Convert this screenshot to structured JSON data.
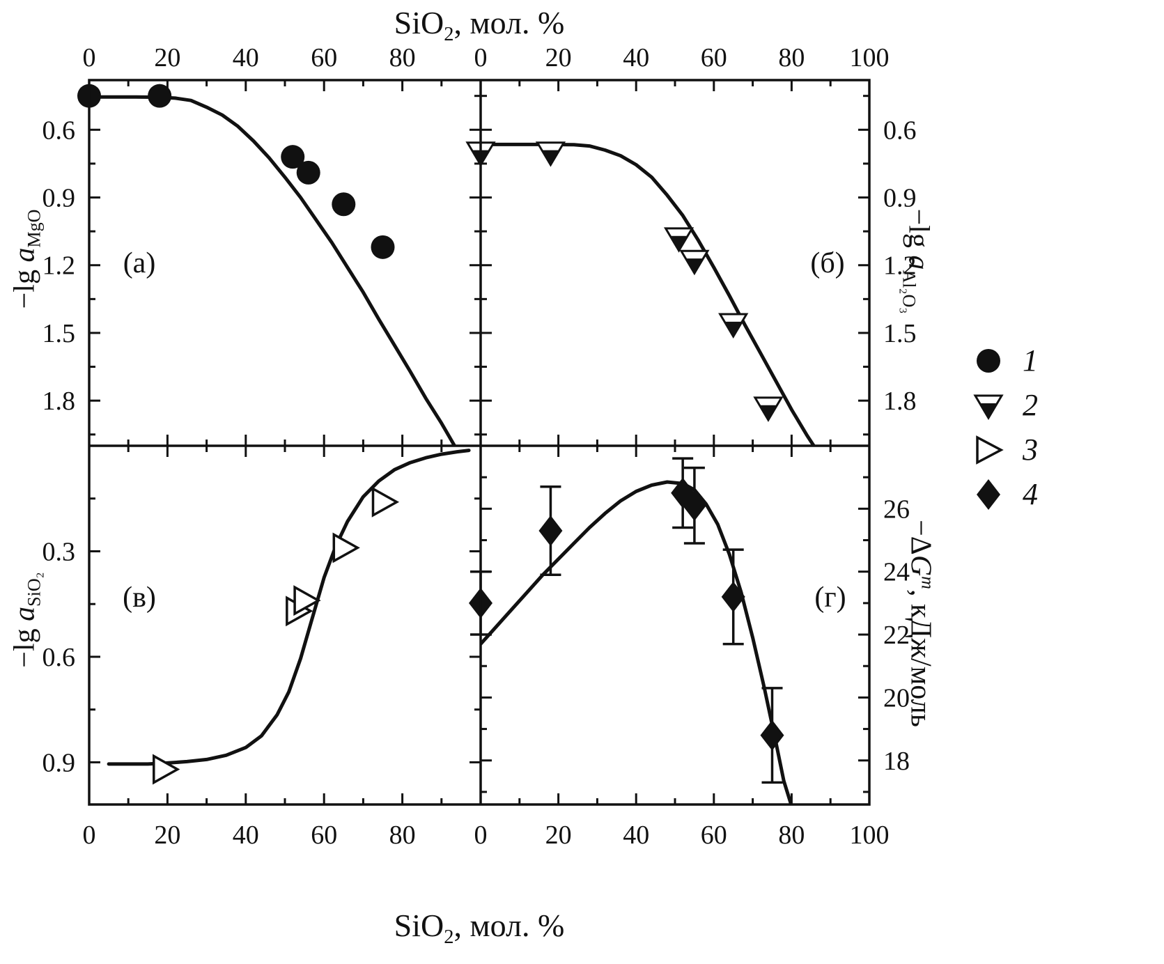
{
  "colors": {
    "ink": "#111111",
    "background": "#ffffff"
  },
  "titles": {
    "top": {
      "pre": "SiO",
      "sub": "2",
      "post": ", мол. %"
    },
    "bottom": {
      "pre": "SiO",
      "sub": "2",
      "post": ", мол. %"
    }
  },
  "axis_labels": {
    "mgo": {
      "pre": "−lg ",
      "it": "a",
      "sub": "MgO"
    },
    "al2o3": {
      "pre": "−lg ",
      "it": "a",
      "sub": "Al₂O₃"
    },
    "sio2": {
      "pre": "−lg ",
      "it": "a",
      "sub": "SiO₂"
    },
    "dg": {
      "pre": "−Δ",
      "it": "G",
      "sup": "m",
      "post": ", кДж/моль"
    }
  },
  "legend": {
    "items": [
      {
        "marker": "circle-filled",
        "label": "1"
      },
      {
        "marker": "triangle-down-halffilled",
        "label": "2"
      },
      {
        "marker": "triangle-right-open",
        "label": "3"
      },
      {
        "marker": "diamond-filled",
        "label": "4"
      }
    ]
  },
  "chart_data": [
    {
      "id": "a",
      "panel_label": "(а)",
      "type": "line+scatter",
      "position": "top-left",
      "marker": "circle-filled",
      "x_axis": {
        "label": "SiO2, мол. %",
        "range": [
          0,
          100
        ],
        "minor_step": 10,
        "tick_values": [
          0,
          20,
          40,
          60,
          80
        ],
        "tick_labels": [
          "0",
          "20",
          "40",
          "60",
          "80"
        ]
      },
      "y_axis": {
        "label": "−lg a_MgO",
        "side": "left",
        "inverted": true,
        "top_value": 0.38,
        "bottom_value": 2.0,
        "tick_values": [
          0.6,
          0.9,
          1.2,
          1.5,
          1.8
        ],
        "tick_labels": [
          "0.6",
          "0.9",
          "1.2",
          "1.5",
          "1.8"
        ]
      },
      "points": [
        [
          0,
          0.45
        ],
        [
          18,
          0.45
        ],
        [
          52,
          0.72
        ],
        [
          56,
          0.79
        ],
        [
          65,
          0.93
        ],
        [
          75,
          1.12
        ]
      ],
      "curve": [
        [
          0,
          0.455
        ],
        [
          6,
          0.455
        ],
        [
          12,
          0.455
        ],
        [
          18,
          0.456
        ],
        [
          22,
          0.46
        ],
        [
          26,
          0.47
        ],
        [
          30,
          0.5
        ],
        [
          34,
          0.535
        ],
        [
          38,
          0.585
        ],
        [
          42,
          0.65
        ],
        [
          46,
          0.725
        ],
        [
          50,
          0.81
        ],
        [
          54,
          0.9
        ],
        [
          58,
          1.0
        ],
        [
          62,
          1.1
        ],
        [
          66,
          1.21
        ],
        [
          70,
          1.32
        ],
        [
          74,
          1.44
        ],
        [
          78,
          1.555
        ],
        [
          82,
          1.67
        ],
        [
          86,
          1.79
        ],
        [
          90,
          1.9
        ],
        [
          94,
          2.02
        ],
        [
          97,
          2.09
        ]
      ]
    },
    {
      "id": "b",
      "panel_label": "(б)",
      "type": "line+scatter",
      "position": "top-right",
      "marker": "triangle-down-halffilled",
      "x_axis": {
        "label": "SiO2, мол. %",
        "range": [
          0,
          100
        ],
        "minor_step": 10,
        "tick_values": [
          0,
          20,
          40,
          60,
          80,
          100
        ],
        "tick_labels": [
          "0",
          "20",
          "40",
          "60",
          "80",
          "100"
        ]
      },
      "y_axis": {
        "label": "−lg a_Al2O3",
        "side": "right",
        "inverted": true,
        "top_value": 0.38,
        "bottom_value": 2.0,
        "tick_values": [
          0.6,
          0.9,
          1.2,
          1.5,
          1.8
        ],
        "tick_labels": [
          "0.6",
          "0.9",
          "1.2",
          "1.5",
          "1.8"
        ]
      },
      "points": [
        [
          0,
          0.7
        ],
        [
          18,
          0.7
        ],
        [
          51,
          1.08
        ],
        [
          55,
          1.18
        ],
        [
          65,
          1.46
        ],
        [
          74,
          1.83
        ]
      ],
      "curve": [
        [
          0,
          0.665
        ],
        [
          8,
          0.665
        ],
        [
          16,
          0.665
        ],
        [
          24,
          0.666
        ],
        [
          28,
          0.672
        ],
        [
          32,
          0.69
        ],
        [
          36,
          0.715
        ],
        [
          40,
          0.755
        ],
        [
          44,
          0.81
        ],
        [
          48,
          0.89
        ],
        [
          52,
          0.98
        ],
        [
          56,
          1.09
        ],
        [
          60,
          1.21
        ],
        [
          64,
          1.335
        ],
        [
          68,
          1.465
        ],
        [
          72,
          1.59
        ],
        [
          76,
          1.715
        ],
        [
          80,
          1.84
        ],
        [
          84,
          1.955
        ],
        [
          88,
          2.06
        ],
        [
          91,
          2.13
        ]
      ]
    },
    {
      "id": "v",
      "panel_label": "(в)",
      "type": "line+scatter",
      "position": "bottom-left",
      "marker": "triangle-right-open",
      "x_axis": {
        "label": "SiO2, мол. %",
        "range": [
          0,
          100
        ],
        "minor_step": 10,
        "tick_values": [
          0,
          20,
          40,
          60,
          80
        ],
        "tick_labels": [
          "0",
          "20",
          "40",
          "60",
          "80"
        ]
      },
      "y_axis": {
        "label": "−lg a_SiO2",
        "side": "left",
        "inverted": true,
        "top_value": 0.0,
        "bottom_value": 1.02,
        "tick_values": [
          0.3,
          0.6,
          0.9
        ],
        "tick_labels": [
          "0.3",
          "0.6",
          "0.9"
        ]
      },
      "points": [
        [
          19,
          0.92
        ],
        [
          53,
          0.47
        ],
        [
          55,
          0.44
        ],
        [
          65,
          0.29
        ],
        [
          75,
          0.16
        ]
      ],
      "curve": [
        [
          5,
          0.905
        ],
        [
          10,
          0.905
        ],
        [
          15,
          0.905
        ],
        [
          20,
          0.902
        ],
        [
          25,
          0.898
        ],
        [
          30,
          0.892
        ],
        [
          35,
          0.88
        ],
        [
          40,
          0.858
        ],
        [
          44,
          0.825
        ],
        [
          48,
          0.765
        ],
        [
          51,
          0.7
        ],
        [
          54,
          0.605
        ],
        [
          57,
          0.49
        ],
        [
          60,
          0.375
        ],
        [
          63,
          0.285
        ],
        [
          66,
          0.215
        ],
        [
          70,
          0.145
        ],
        [
          74,
          0.1
        ],
        [
          78,
          0.068
        ],
        [
          82,
          0.048
        ],
        [
          86,
          0.034
        ],
        [
          90,
          0.024
        ],
        [
          94,
          0.017
        ],
        [
          97,
          0.013
        ]
      ]
    },
    {
      "id": "g",
      "panel_label": "(г)",
      "type": "line+scatter+errorbars",
      "position": "bottom-right",
      "marker": "diamond-filled",
      "x_axis": {
        "label": "SiO2, мол. %",
        "range": [
          0,
          100
        ],
        "minor_step": 10,
        "tick_values": [
          0,
          20,
          40,
          60,
          80,
          100
        ],
        "tick_labels": [
          "0",
          "20",
          "40",
          "60",
          "80",
          "100"
        ]
      },
      "y_axis": {
        "label": "−ΔG^m, кДж/моль",
        "side": "right",
        "inverted": false,
        "top_value": 28.0,
        "bottom_value": 16.6,
        "tick_values": [
          18,
          20,
          22,
          24,
          26
        ],
        "tick_labels": [
          "18",
          "20",
          "22",
          "24",
          "26"
        ]
      },
      "points": [
        [
          0,
          23.0,
          1.0
        ],
        [
          18,
          25.3,
          1.4
        ],
        [
          52,
          26.5,
          1.1
        ],
        [
          55,
          26.1,
          1.2
        ],
        [
          65,
          23.2,
          1.5
        ],
        [
          75,
          18.8,
          1.5
        ]
      ],
      "curve": [
        [
          0,
          21.7
        ],
        [
          4,
          22.25
        ],
        [
          8,
          22.8
        ],
        [
          12,
          23.35
        ],
        [
          16,
          23.9
        ],
        [
          20,
          24.4
        ],
        [
          24,
          24.9
        ],
        [
          28,
          25.4
        ],
        [
          32,
          25.85
        ],
        [
          36,
          26.25
        ],
        [
          40,
          26.55
        ],
        [
          44,
          26.75
        ],
        [
          48,
          26.85
        ],
        [
          52,
          26.8
        ],
        [
          55,
          26.6
        ],
        [
          58,
          26.15
        ],
        [
          61,
          25.5
        ],
        [
          64,
          24.55
        ],
        [
          67,
          23.35
        ],
        [
          70,
          21.9
        ],
        [
          73,
          20.3
        ],
        [
          76,
          18.55
        ],
        [
          78,
          17.35
        ],
        [
          80,
          16.55
        ]
      ]
    }
  ]
}
